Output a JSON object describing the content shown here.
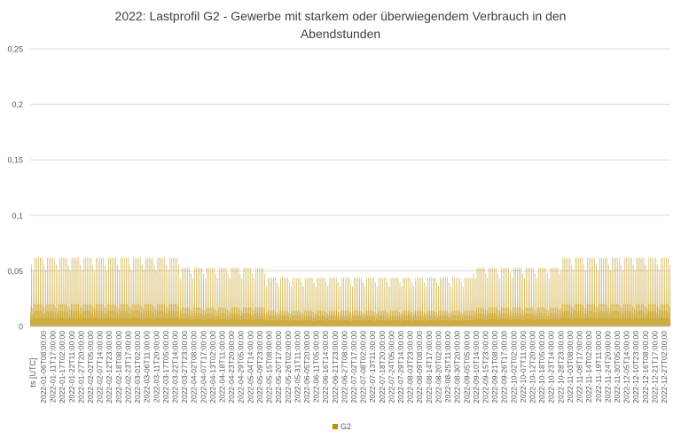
{
  "chart_data": {
    "type": "area",
    "title_line1": "2022: Lastprofil G2 - Gewerbe mit starkem oder überwiegendem Verbrauch in den",
    "title_line2": "Abendstunden",
    "xlabel": "ts [UTC]",
    "ylabel": "",
    "ylim": [
      0,
      0.25
    ],
    "y_ticks": [
      "0",
      "0,05",
      "0,1",
      "0,15",
      "0,2",
      "0,25"
    ],
    "x_ticks": [
      "2022-01-06T08:00:00",
      "2022-01-11T17:00:00",
      "2022-01-17T02:00:00",
      "2022-01-22T11:00:00",
      "2022-01-27T20:00:00",
      "2022-02-02T05:00:00",
      "2022-02-07T14:00:00",
      "2022-02-12T23:00:00",
      "2022-02-18T08:00:00",
      "2022-02-23T17:00:00",
      "2022-03-01T02:00:00",
      "2022-03-06T11:00:00",
      "2022-03-11T20:00:00",
      "2022-03-17T05:00:00",
      "2022-03-22T14:00:00",
      "2022-03-27T23:00:00",
      "2022-04-02T08:00:00",
      "2022-04-07T17:00:00",
      "2022-04-13T02:00:00",
      "2022-04-18T11:00:00",
      "2022-04-23T20:00:00",
      "2022-04-29T05:00:00",
      "2022-05-04T14:00:00",
      "2022-05-09T23:00:00",
      "2022-05-15T08:00:00",
      "2022-05-20T17:00:00",
      "2022-05-26T02:00:00",
      "2022-05-31T11:00:00",
      "2022-06-05T20:00:00",
      "2022-06-11T05:00:00",
      "2022-06-16T14:00:00",
      "2022-06-21T23:00:00",
      "2022-06-27T08:00:00",
      "2022-07-02T17:00:00",
      "2022-07-08T02:00:00",
      "2022-07-13T11:00:00",
      "2022-07-18T20:00:00",
      "2022-07-24T05:00:00",
      "2022-07-29T14:00:00",
      "2022-08-03T23:00:00",
      "2022-08-09T08:00:00",
      "2022-08-14T17:00:00",
      "2022-08-20T02:00:00",
      "2022-08-25T11:00:00",
      "2022-08-30T20:00:00",
      "2022-09-05T05:00:00",
      "2022-09-10T14:00:00",
      "2022-09-15T23:00:00",
      "2022-09-21T08:00:00",
      "2022-09-26T17:00:00",
      "2022-10-02T02:00:00",
      "2022-10-07T11:00:00",
      "2022-10-12T20:00:00",
      "2022-10-18T05:00:00",
      "2022-10-23T14:00:00",
      "2022-10-28T23:00:00",
      "2022-11-03T08:00:00",
      "2022-11-08T17:00:00",
      "2022-11-14T02:00:00",
      "2022-11-19T11:00:00",
      "2022-11-24T20:00:00",
      "2022-11-30T05:00:00",
      "2022-12-05T14:00:00",
      "2022-12-10T23:00:00",
      "2022-12-16T08:00:00",
      "2022-12-21T17:00:00",
      "2022-12-27T02:00:00"
    ],
    "series": [
      {
        "name": "G2",
        "color": "#bf9000",
        "x_range": [
          "2022-01-01T00:00:00",
          "2022-12-31T23:00:00"
        ],
        "resolution": "hourly",
        "pattern": "daily cycle: low base ~0.004-0.010 overnight, evening peak; weekly variation",
        "daily_peak_by_period": [
          {
            "from": "2022-01-01",
            "to": "2022-03-27",
            "peak": 0.062
          },
          {
            "from": "2022-03-27",
            "to": "2022-05-15",
            "peak": 0.053
          },
          {
            "from": "2022-05-15",
            "to": "2022-09-10",
            "peak": 0.044
          },
          {
            "from": "2022-09-10",
            "to": "2022-10-30",
            "peak": 0.053
          },
          {
            "from": "2022-10-30",
            "to": "2022-12-31",
            "peak": 0.062
          }
        ]
      }
    ],
    "grid": "horizontal",
    "legend": "bottom"
  }
}
